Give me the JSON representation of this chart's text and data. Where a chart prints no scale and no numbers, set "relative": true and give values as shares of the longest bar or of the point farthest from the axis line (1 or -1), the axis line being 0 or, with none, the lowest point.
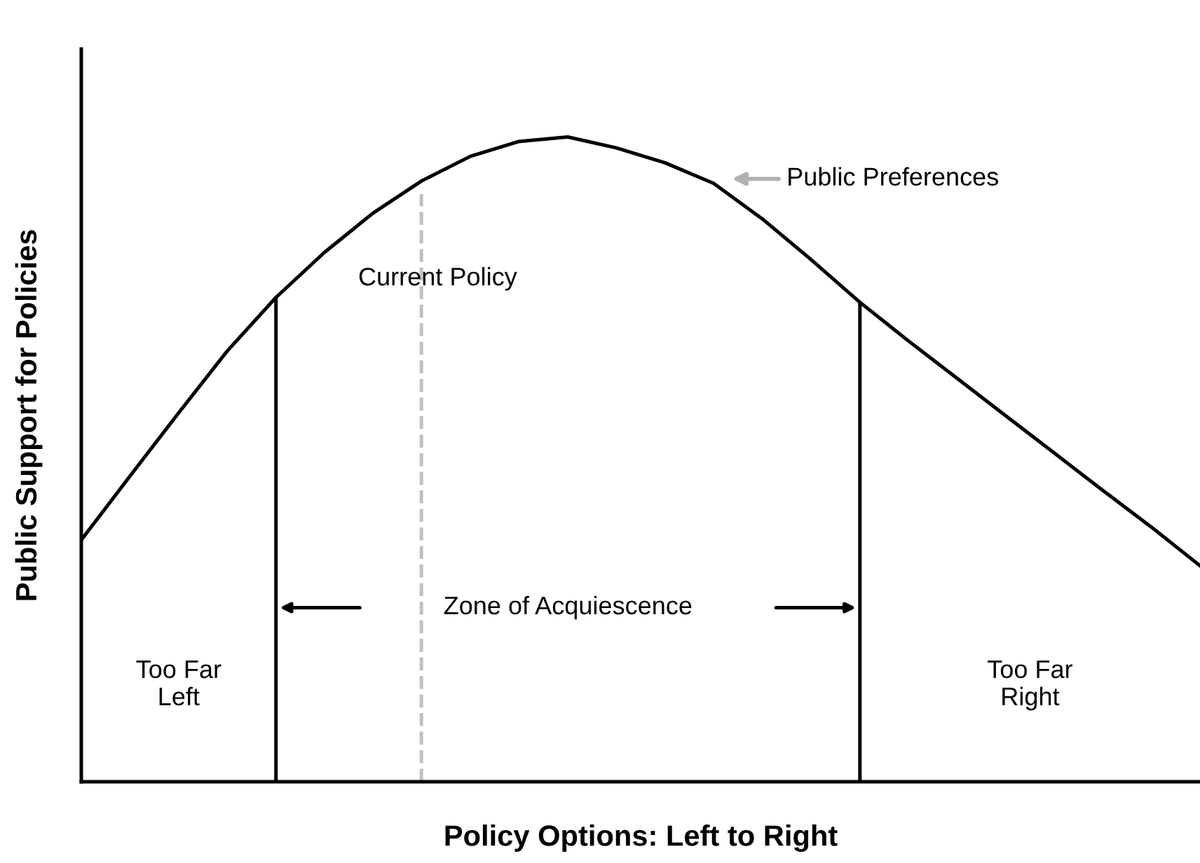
{
  "chart_data": {
    "type": "line",
    "relative": true,
    "xlabel": "Policy Options: Left to Right",
    "ylabel": "Public Support for Policies",
    "categories": [
      null,
      null,
      null,
      null,
      null,
      null,
      null,
      null,
      null,
      null,
      null,
      null,
      null,
      null,
      null,
      null,
      null,
      null,
      null,
      null,
      null,
      null,
      null,
      null
    ],
    "series": [
      {
        "color": "#000000",
        "values": [
          0.375,
          0.474,
          0.572,
          0.668,
          0.751,
          0.821,
          0.882,
          0.932,
          0.97,
          0.993,
          1,
          0.983,
          0.96,
          0.928,
          0.873,
          0.81,
          0.744,
          0.684,
          0.626,
          0.568,
          0.51,
          0.452,
          0.395,
          0.335
        ]
      }
    ],
    "annotations": [
      "Public Preferences",
      "Current Policy",
      "Zone of Acquiescence",
      "Too Far\nLeft",
      "Too Far\nRight"
    ],
    "legend": false,
    "marker": "none",
    "line_style": "solid"
  }
}
